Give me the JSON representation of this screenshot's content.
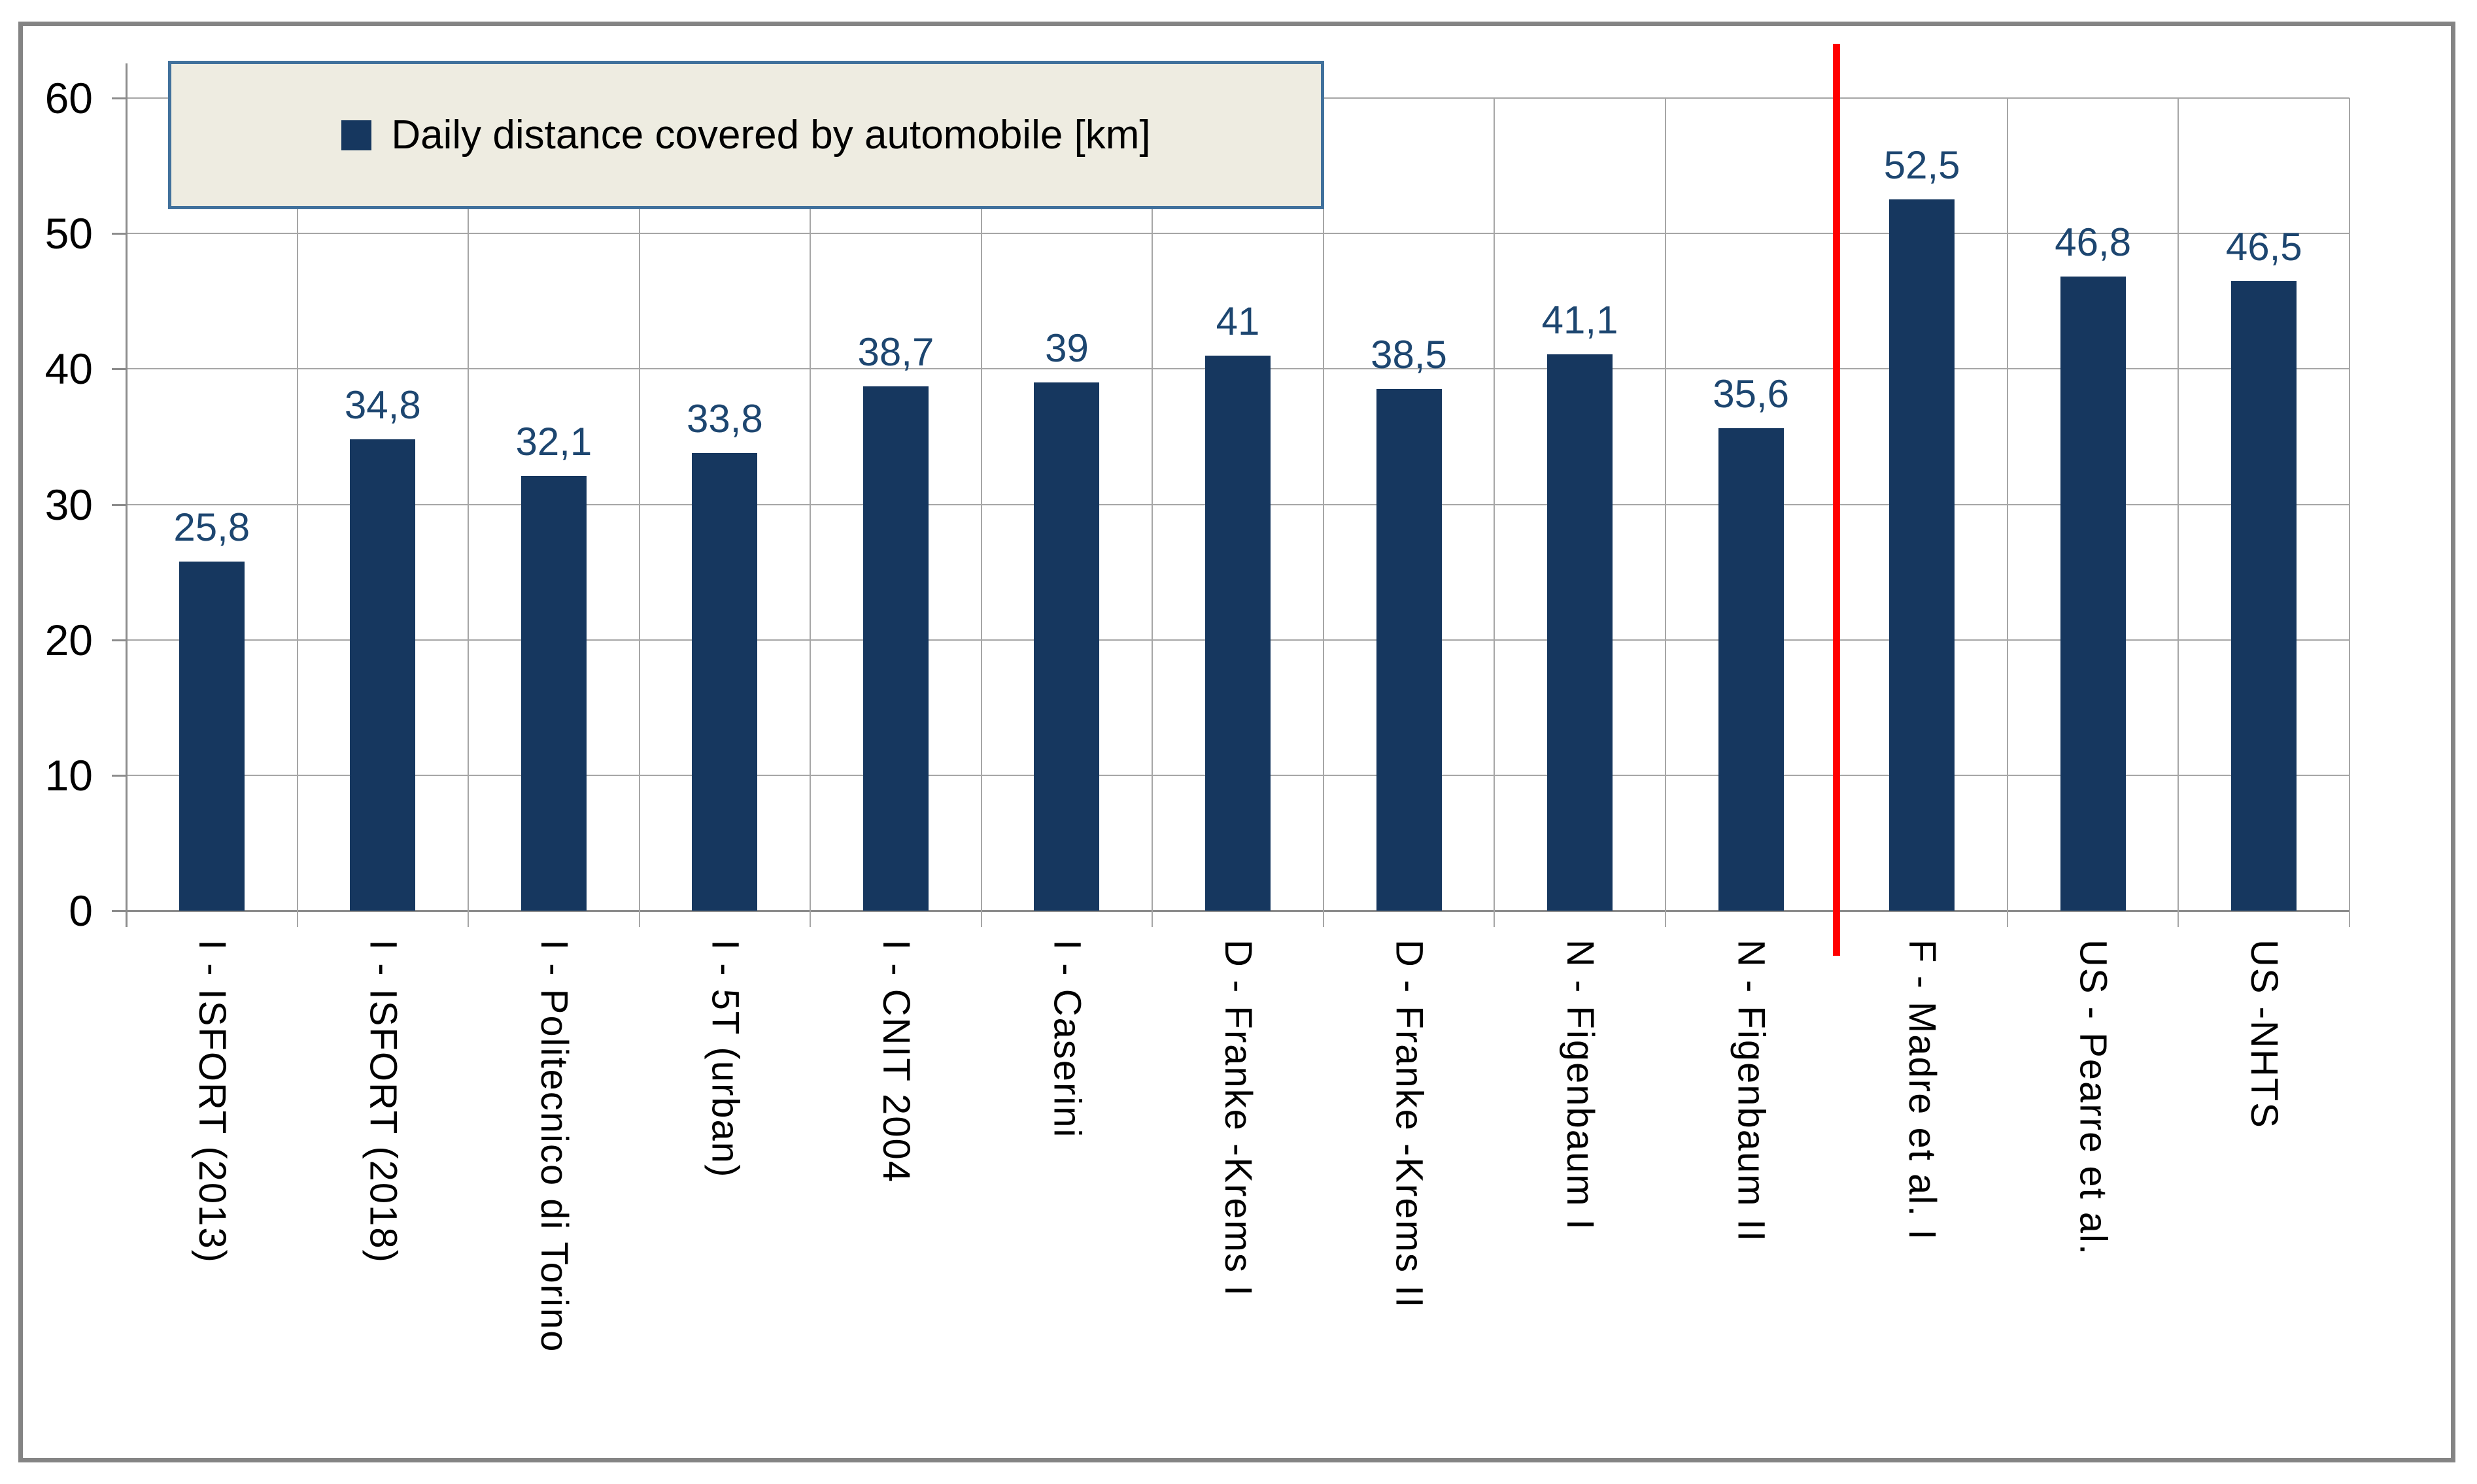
{
  "chart_data": {
    "type": "bar",
    "title": "",
    "legend": {
      "label": "Daily distance covered by automobile [km]",
      "position": "top-left"
    },
    "categories": [
      "I - ISFORT (2013)",
      "I - ISFORT (2018)",
      "I - Politecnico di Torino",
      "I - 5T (urban)",
      "I - CNIT 2004",
      "I - Caserini",
      "D - Franke -Krems I",
      "D - Franke -Krems II",
      "N - Figenbaum I",
      "N - Figenbaum II",
      "F - Madre et al. I",
      "US - Pearre et al.",
      "US -NHTS"
    ],
    "series": [
      {
        "name": "Daily distance covered by automobile [km]",
        "values": [
          25.8,
          34.8,
          32.1,
          33.8,
          38.7,
          39,
          41,
          38.5,
          41.1,
          35.6,
          52.5,
          46.8,
          46.5
        ],
        "value_labels": [
          "25,8",
          "34,8",
          "32,1",
          "33,8",
          "38,7",
          "39",
          "41",
          "38,5",
          "41,1",
          "35,6",
          "52,5",
          "46,8",
          "46,5"
        ]
      }
    ],
    "ylim": [
      0,
      60
    ],
    "yticks": [
      0,
      10,
      20,
      30,
      40,
      50,
      60
    ],
    "ytick_labels": [
      "0",
      "10",
      "20",
      "30",
      "40",
      "50",
      "60"
    ],
    "grid": true,
    "separator": {
      "type": "vertical-line",
      "after_category": "N - Figenbaum II",
      "after_index": 10,
      "color": "#FF0000"
    },
    "colors": {
      "bar": "#16375F",
      "value_label": "#1D4670",
      "grid": "#A6A6A6",
      "axis": "#8C8C8C",
      "frame": "#848484",
      "legend_fill": "#EEECE1",
      "legend_border": "#41719C",
      "background": "#FFFFFF",
      "separator": "#FF0000",
      "text": "#000000"
    }
  }
}
